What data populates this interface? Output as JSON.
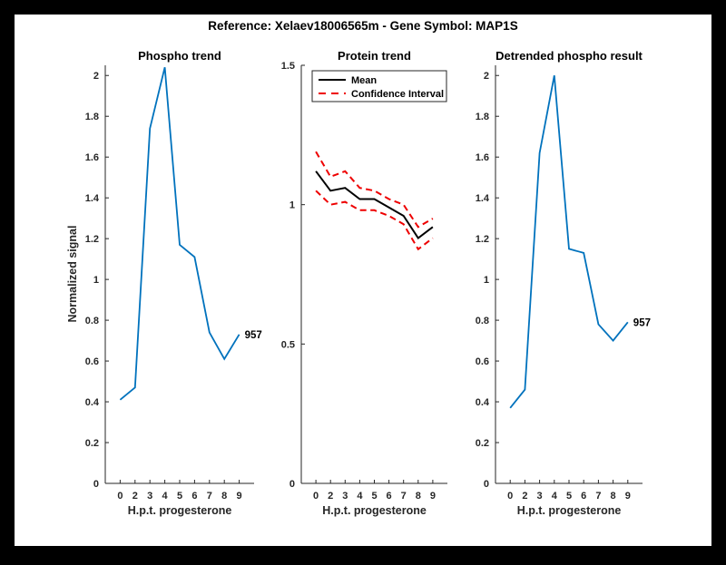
{
  "title": "Reference:  Xelaev18006565m - Gene Symbol:  MAP1S",
  "colors": {
    "figure_background": "#ffffff",
    "page_border": "#000000",
    "axis": "#262626",
    "blue_line": "#0072BD",
    "mean_line": "#000000",
    "ci_line": "#EE0000"
  },
  "chart_data": [
    {
      "type": "line",
      "title": "Phospho trend",
      "xlabel": "H.p.t. progesterone",
      "ylabel": "Normalized signal",
      "categories": [
        "0",
        "2",
        "3",
        "4",
        "5",
        "6",
        "7",
        "8",
        "9"
      ],
      "ylim": [
        0,
        2.05
      ],
      "yticks": {
        "values": [
          0,
          0.2,
          0.4,
          0.6,
          0.8,
          1,
          1.2,
          1.4,
          1.6,
          1.8,
          2
        ],
        "labels": [
          "0",
          "0.2",
          "0.4",
          "0.6",
          "0.8",
          "1",
          "1.2",
          "1.4",
          "1.6",
          "1.8",
          "2"
        ]
      },
      "grid": false,
      "series": [
        {
          "name": "phospho-signal",
          "color": "#0072BD",
          "dash": "solid",
          "width": 1.8,
          "values": [
            0.41,
            0.47,
            1.74,
            2.04,
            1.17,
            1.11,
            0.74,
            0.61,
            0.73
          ]
        }
      ],
      "end_label": "957"
    },
    {
      "type": "line",
      "title": "Protein trend",
      "xlabel": "H.p.t. progesterone",
      "categories": [
        "0",
        "2",
        "3",
        "4",
        "5",
        "6",
        "7",
        "8",
        "9"
      ],
      "ylim": [
        0,
        1.5
      ],
      "yticks": {
        "values": [
          0,
          0.5,
          1,
          1.5
        ],
        "labels": [
          "0",
          "0.5",
          "1",
          "1.5"
        ]
      },
      "grid": false,
      "series": [
        {
          "name": "ci-upper",
          "color": "#EE0000",
          "dash": "dashed",
          "width": 2,
          "values": [
            1.19,
            1.1,
            1.12,
            1.06,
            1.05,
            1.02,
            1.0,
            0.92,
            0.95
          ]
        },
        {
          "name": "ci-lower",
          "color": "#EE0000",
          "dash": "dashed",
          "width": 2,
          "values": [
            1.05,
            1.0,
            1.01,
            0.98,
            0.98,
            0.96,
            0.93,
            0.84,
            0.88
          ]
        },
        {
          "name": "mean",
          "color": "#000000",
          "dash": "solid",
          "width": 2,
          "values": [
            1.12,
            1.05,
            1.06,
            1.02,
            1.02,
            0.99,
            0.96,
            0.88,
            0.92
          ]
        }
      ],
      "legend": {
        "position": "northwest",
        "entries": [
          {
            "label": "Mean",
            "color": "#000000",
            "dash": "solid"
          },
          {
            "label": "Confidence Interval",
            "color": "#EE0000",
            "dash": "dashed"
          }
        ]
      }
    },
    {
      "type": "line",
      "title": "Detrended phospho result",
      "xlabel": "H.p.t. progesterone",
      "categories": [
        "0",
        "2",
        "3",
        "4",
        "5",
        "6",
        "7",
        "8",
        "9"
      ],
      "ylim": [
        0,
        2.05
      ],
      "yticks": {
        "values": [
          0,
          0.2,
          0.4,
          0.6,
          0.8,
          1,
          1.2,
          1.4,
          1.6,
          1.8,
          2
        ],
        "labels": [
          "0",
          "0.2",
          "0.4",
          "0.6",
          "0.8",
          "1",
          "1.2",
          "1.4",
          "1.6",
          "1.8",
          "2"
        ]
      },
      "grid": false,
      "series": [
        {
          "name": "detrended-phospho",
          "color": "#0072BD",
          "dash": "solid",
          "width": 1.8,
          "values": [
            0.37,
            0.46,
            1.62,
            2.0,
            1.15,
            1.13,
            0.78,
            0.7,
            0.79
          ]
        }
      ],
      "end_label": "957"
    }
  ]
}
